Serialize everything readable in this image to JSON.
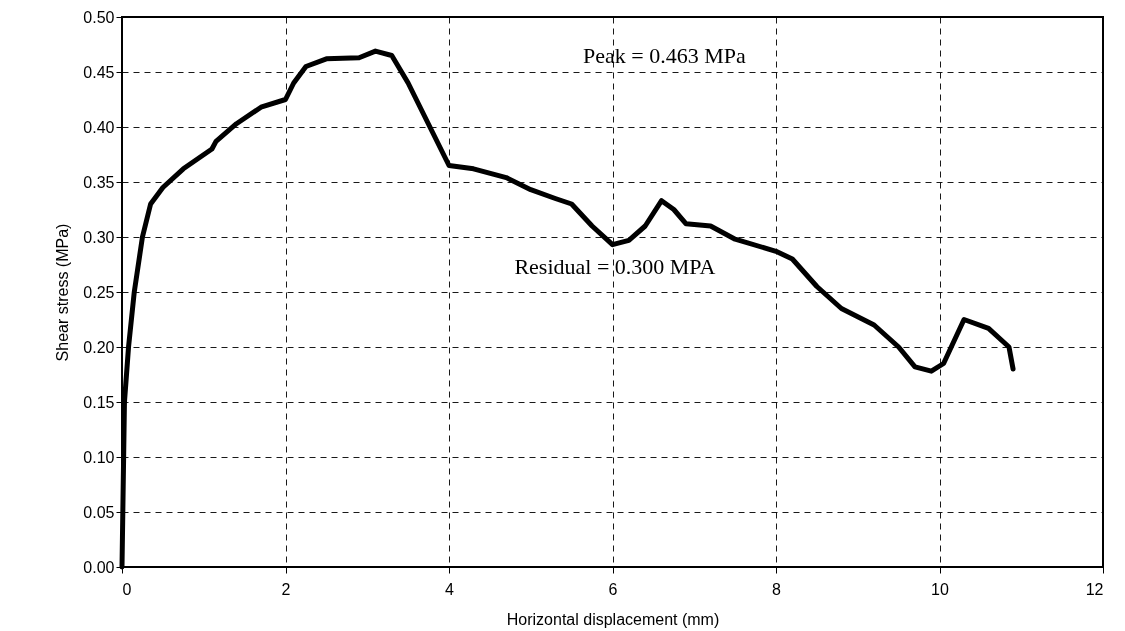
{
  "chart_data": {
    "type": "line",
    "xlabel": "Horizontal displacement (mm)",
    "ylabel": "Shear stress (MPa)",
    "xlim": [
      0,
      12
    ],
    "xticks": [
      0,
      2,
      4,
      6,
      8,
      10,
      12
    ],
    "ylim": [
      0,
      0.5
    ],
    "yticks": [
      {
        "value": 0,
        "label": "0.00"
      },
      {
        "value": 0.05,
        "label": "0.05"
      },
      {
        "value": 0.1,
        "label": "0.10"
      },
      {
        "value": 0.15,
        "label": "0.15"
      },
      {
        "value": 0.2,
        "label": "0.20"
      },
      {
        "value": 0.25,
        "label": "0.25"
      },
      {
        "value": 0.3,
        "label": "0.30"
      },
      {
        "value": 0.35,
        "label": "0.35"
      },
      {
        "value": 0.4,
        "label": "0.40"
      },
      {
        "value": 0.45,
        "label": "0.45"
      },
      {
        "value": 0.5,
        "label": "0.50"
      }
    ],
    "grid": true,
    "marker": "none",
    "line_style": "solid",
    "annotations": [
      "Peak = 0.463 MPa",
      "Residual = 0.300 MPA"
    ],
    "series": [
      {
        "color": "#000000",
        "x": [
          0,
          0.03,
          0.08,
          0.15,
          0.25,
          0.35,
          0.5,
          0.75,
          1.1,
          1.15,
          1.4,
          1.7,
          2.0,
          2.1,
          2.25,
          2.5,
          2.9,
          3.1,
          3.3,
          3.5,
          3.8,
          4.0,
          4.3,
          4.7,
          5.0,
          5.3,
          5.5,
          5.75,
          6.0,
          6.2,
          6.4,
          6.6,
          6.75,
          6.9,
          7.2,
          7.5,
          8.0,
          8.2,
          8.5,
          8.8,
          9.2,
          9.5,
          9.7,
          9.9,
          10.05,
          10.3,
          10.6,
          10.85,
          10.9
        ],
        "values": [
          0,
          0.15,
          0.2,
          0.25,
          0.3,
          0.33,
          0.345,
          0.362,
          0.38,
          0.387,
          0.403,
          0.418,
          0.425,
          0.44,
          0.455,
          0.462,
          0.463,
          0.469,
          0.465,
          0.44,
          0.395,
          0.365,
          0.362,
          0.354,
          0.343,
          0.335,
          0.33,
          0.31,
          0.293,
          0.297,
          0.31,
          0.333,
          0.325,
          0.312,
          0.31,
          0.298,
          0.287,
          0.28,
          0.255,
          0.235,
          0.22,
          0.2,
          0.182,
          0.178,
          0.185,
          0.225,
          0.217,
          0.2,
          0.18
        ]
      }
    ]
  }
}
